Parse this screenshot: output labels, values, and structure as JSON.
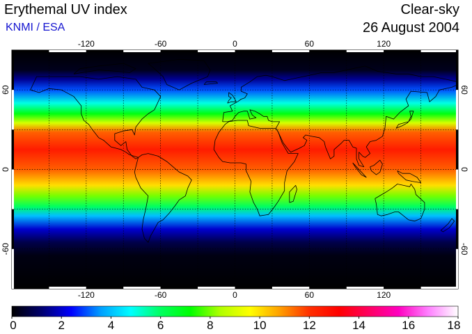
{
  "header": {
    "title": "Erythemal UV index",
    "source": "KNMI / ESA",
    "sky_condition": "Clear-sky",
    "date": "26 August 2004"
  },
  "map": {
    "projection": "equirectangular",
    "lon_range": [
      -180,
      180
    ],
    "lat_range": [
      -90,
      90
    ],
    "grid_lines": "dotted",
    "grid_lon_step": 30,
    "grid_lat_step": 30,
    "lon_tick_labels": [
      "-120",
      "-60",
      "0",
      "60",
      "120"
    ],
    "lat_tick_labels": [
      "60",
      "0",
      "-60"
    ],
    "coastlines": true
  },
  "colorbar": {
    "min": 0,
    "max": 18,
    "labels": [
      "0",
      "2",
      "4",
      "6",
      "8",
      "10",
      "12",
      "14",
      "16",
      "18"
    ],
    "colors": [
      "#000000",
      "#00006e",
      "#0000ff",
      "#00a0ff",
      "#00ffff",
      "#00ff60",
      "#00ff00",
      "#b0ff00",
      "#ffff00",
      "#ffa000",
      "#ff3000",
      "#ff0000",
      "#ff0060",
      "#ff00c0",
      "#ff80ff",
      "#ffffff"
    ]
  },
  "uv_profile_by_latitude": [
    {
      "lat": 90,
      "uv": 0.0
    },
    {
      "lat": 75,
      "uv": 0.3
    },
    {
      "lat": 68,
      "uv": 1.5
    },
    {
      "lat": 60,
      "uv": 3.0
    },
    {
      "lat": 50,
      "uv": 5.0
    },
    {
      "lat": 42,
      "uv": 7.0
    },
    {
      "lat": 35,
      "uv": 9.0
    },
    {
      "lat": 28,
      "uv": 11.5
    },
    {
      "lat": 15,
      "uv": 12.5
    },
    {
      "lat": 0,
      "uv": 11.5
    },
    {
      "lat": -12,
      "uv": 10.0
    },
    {
      "lat": -20,
      "uv": 8.0
    },
    {
      "lat": -28,
      "uv": 6.0
    },
    {
      "lat": -35,
      "uv": 4.0
    },
    {
      "lat": -45,
      "uv": 2.0
    },
    {
      "lat": -55,
      "uv": 0.8
    },
    {
      "lat": -65,
      "uv": 0.2
    },
    {
      "lat": -90,
      "uv": 0.0
    }
  ]
}
